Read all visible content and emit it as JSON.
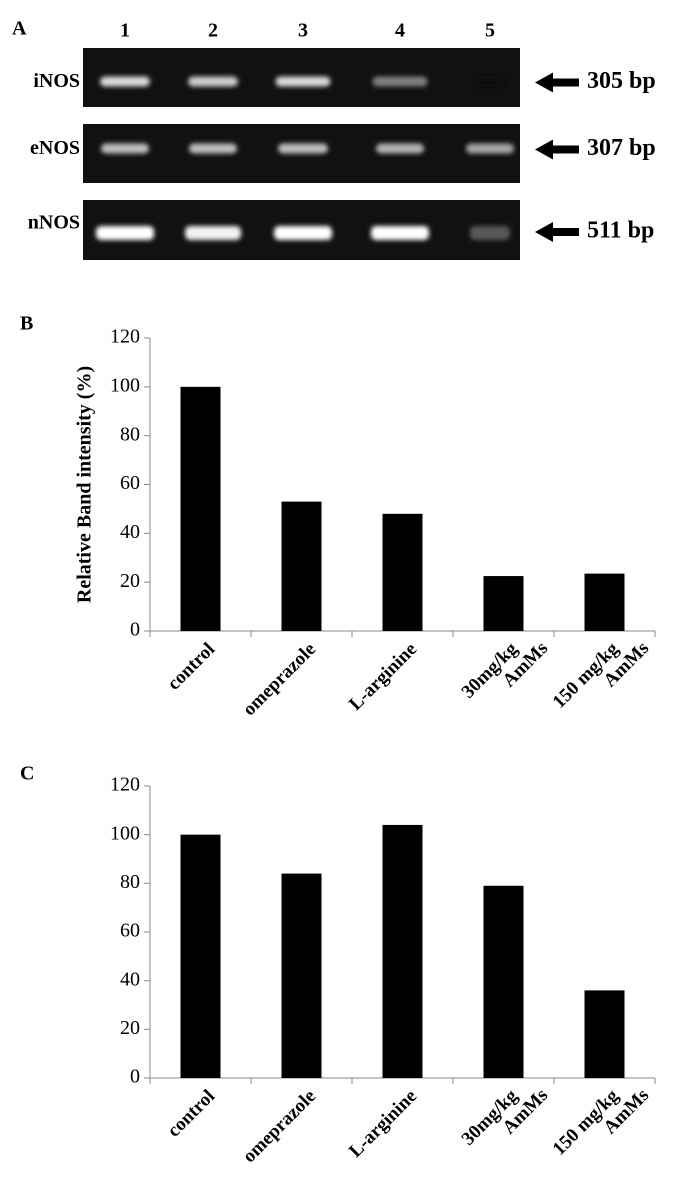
{
  "panel_a": {
    "label": "A",
    "lanes": [
      "1",
      "2",
      "3",
      "4",
      "5"
    ],
    "rows": [
      {
        "name": "iNOS",
        "size": "305 bp"
      },
      {
        "name": "eNOS",
        "size": "307 bp"
      },
      {
        "name": "nNOS",
        "size": "511 bp"
      }
    ]
  },
  "chart_data": [
    {
      "type": "bar",
      "label": "B",
      "ylabel": "Relative Band intensity (%)",
      "categories": [
        "control",
        "omeprazole",
        "L-arginine",
        "30mg/kg\nAmMs",
        "150 mg/kg\nAmMs"
      ],
      "values": [
        100,
        53,
        48,
        22.5,
        23.5
      ],
      "color": "#000000",
      "ylim": [
        0,
        120
      ],
      "yticks": [
        0,
        20,
        40,
        60,
        80,
        100,
        120
      ],
      "grid": false
    },
    {
      "type": "bar",
      "label": "C",
      "categories": [
        "control",
        "omeprazole",
        "L-arginine",
        "30mg/kg\nAmMs",
        "150 mg/kg\nAmMs"
      ],
      "values": [
        100,
        84,
        104,
        79,
        36
      ],
      "color": "#000000",
      "ylim": [
        0,
        120
      ],
      "yticks": [
        0,
        20,
        40,
        60,
        80,
        100,
        120
      ],
      "grid": false
    }
  ]
}
